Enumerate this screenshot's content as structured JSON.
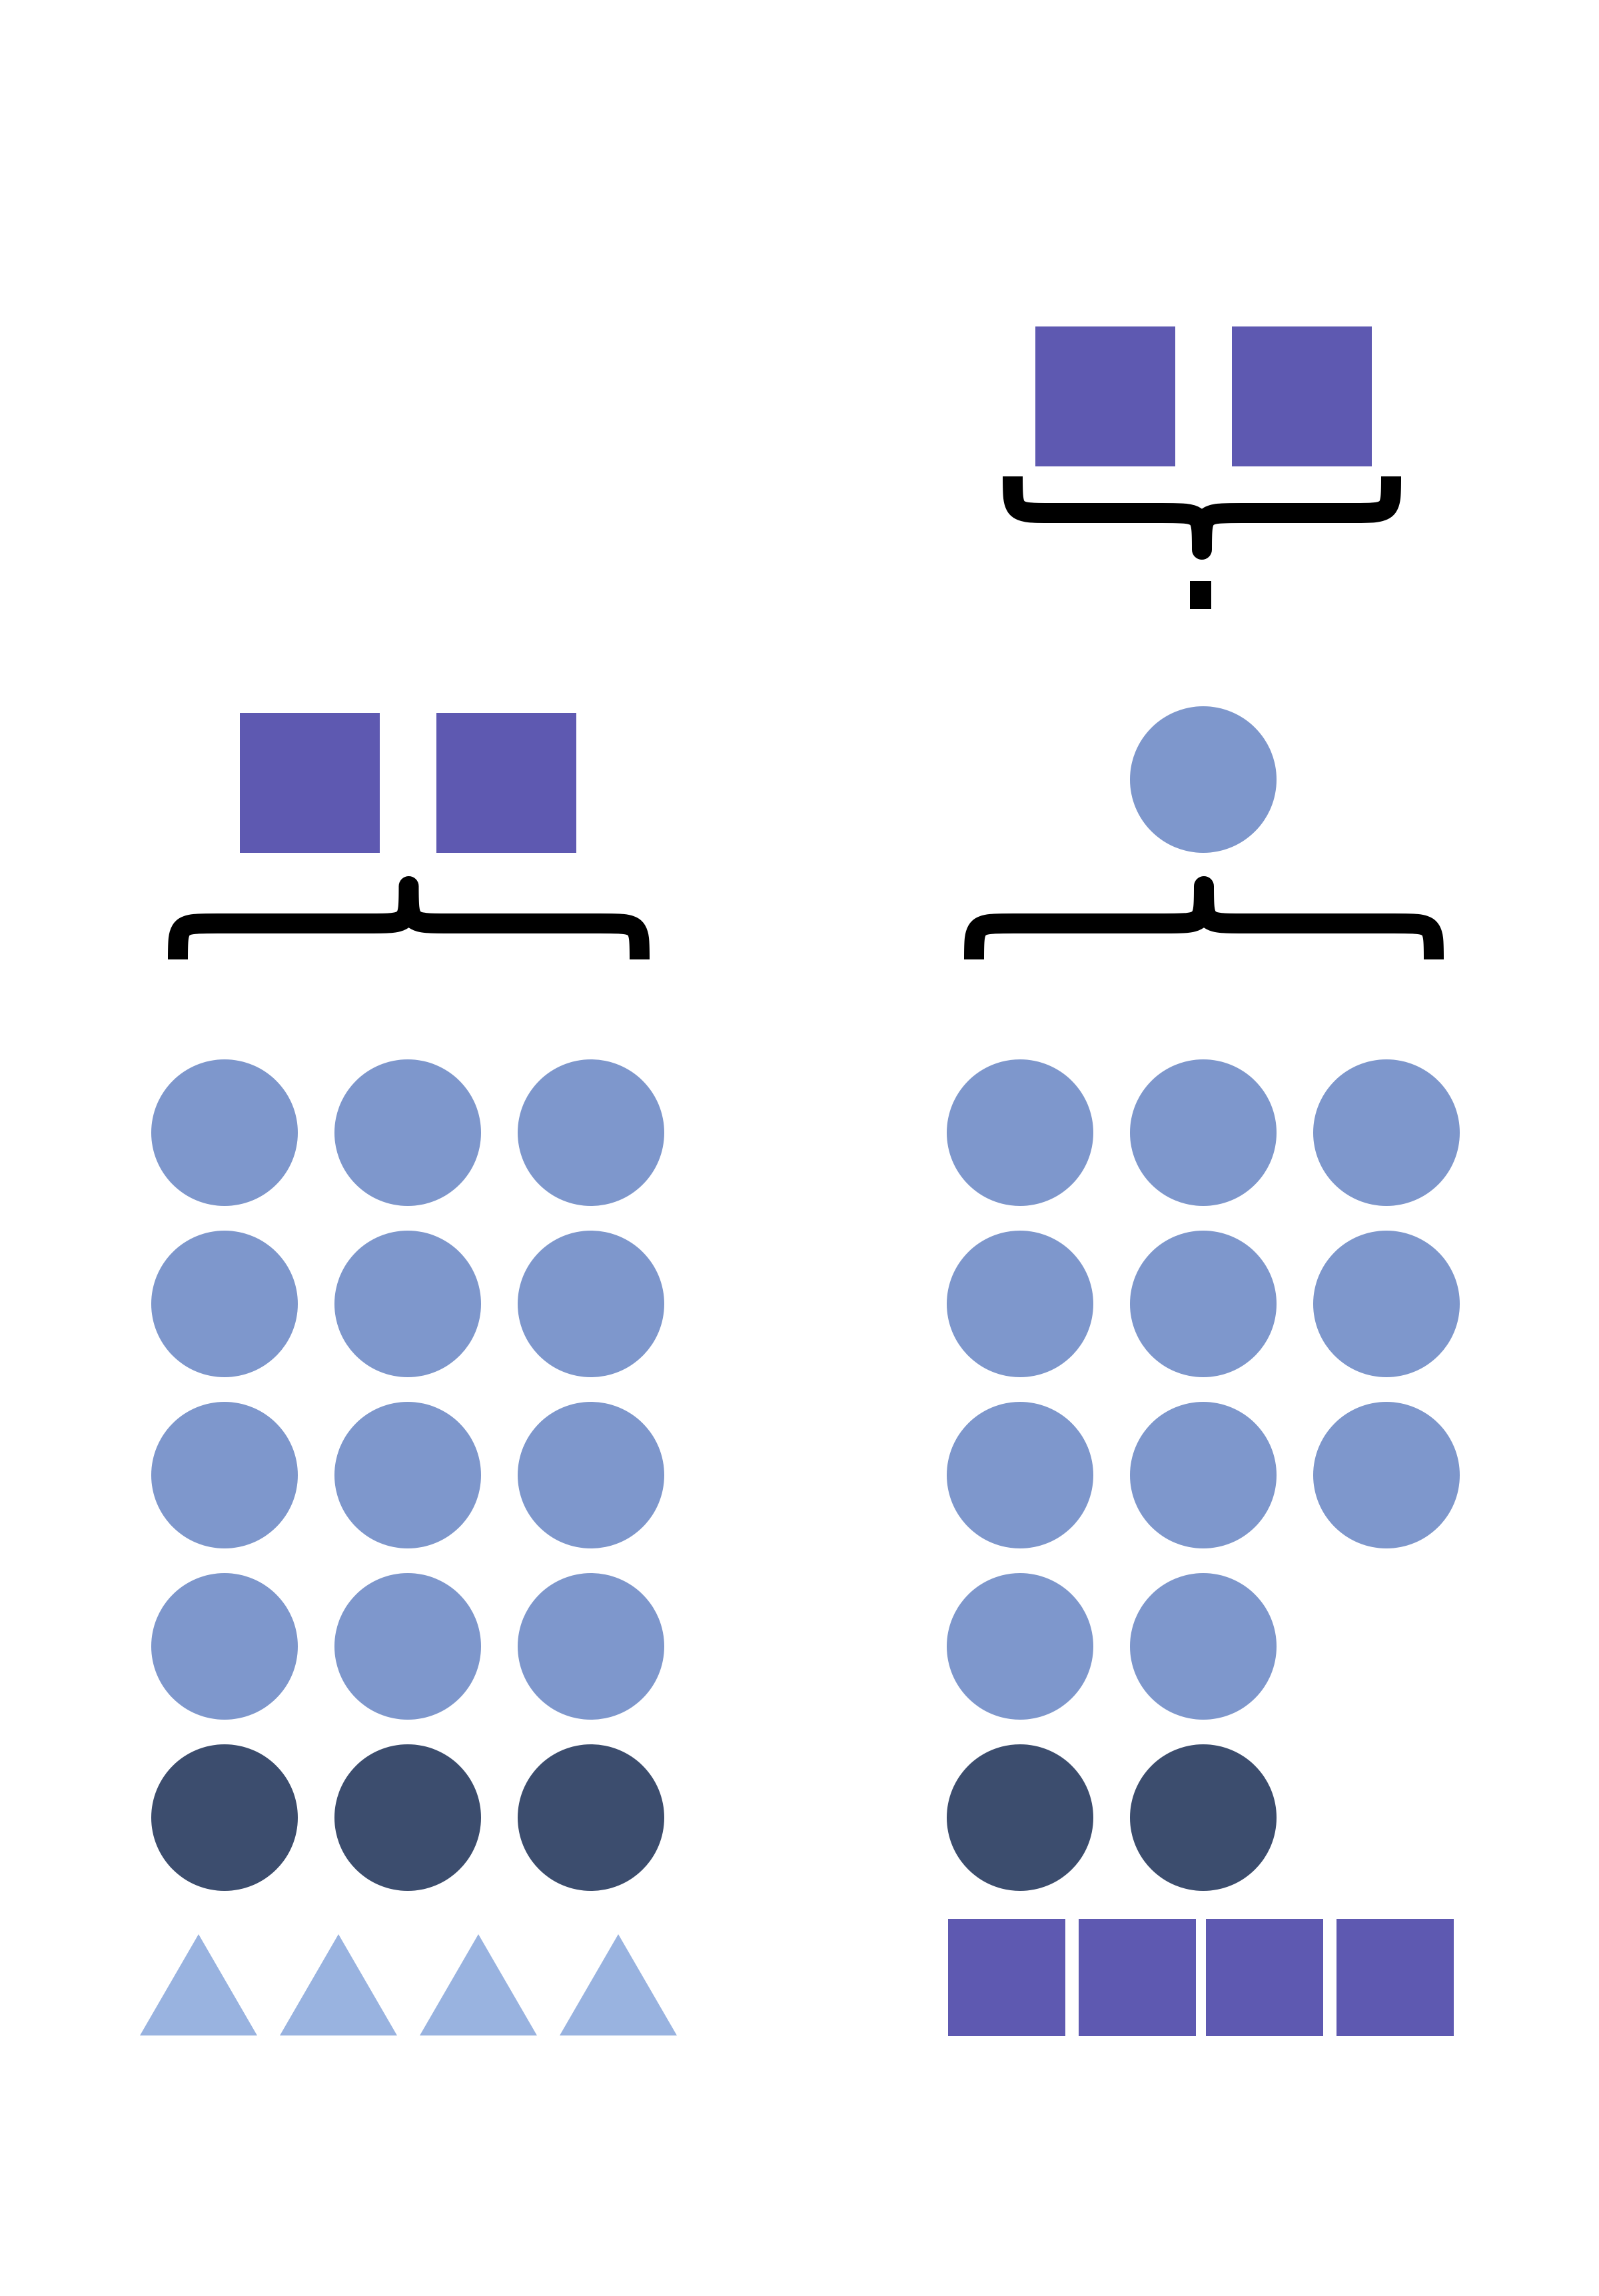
{
  "colors": {
    "square": "#5e59b1",
    "circle_light": "#7e97cc",
    "circle_dark": "#3c4d6e",
    "triangle": "#99b3e0",
    "brace": "#000000",
    "background": "#ffffff"
  },
  "left_group": {
    "top_squares": 2,
    "light_circle_rows": 4,
    "circles_per_row": 3,
    "dark_circles": 3,
    "triangles": 4
  },
  "right_group": {
    "top_squares": 2,
    "middle_circle": 1,
    "light_circle_rows": [
      3,
      3,
      3,
      2
    ],
    "dark_circles": 2,
    "bottom_squares": 4
  }
}
